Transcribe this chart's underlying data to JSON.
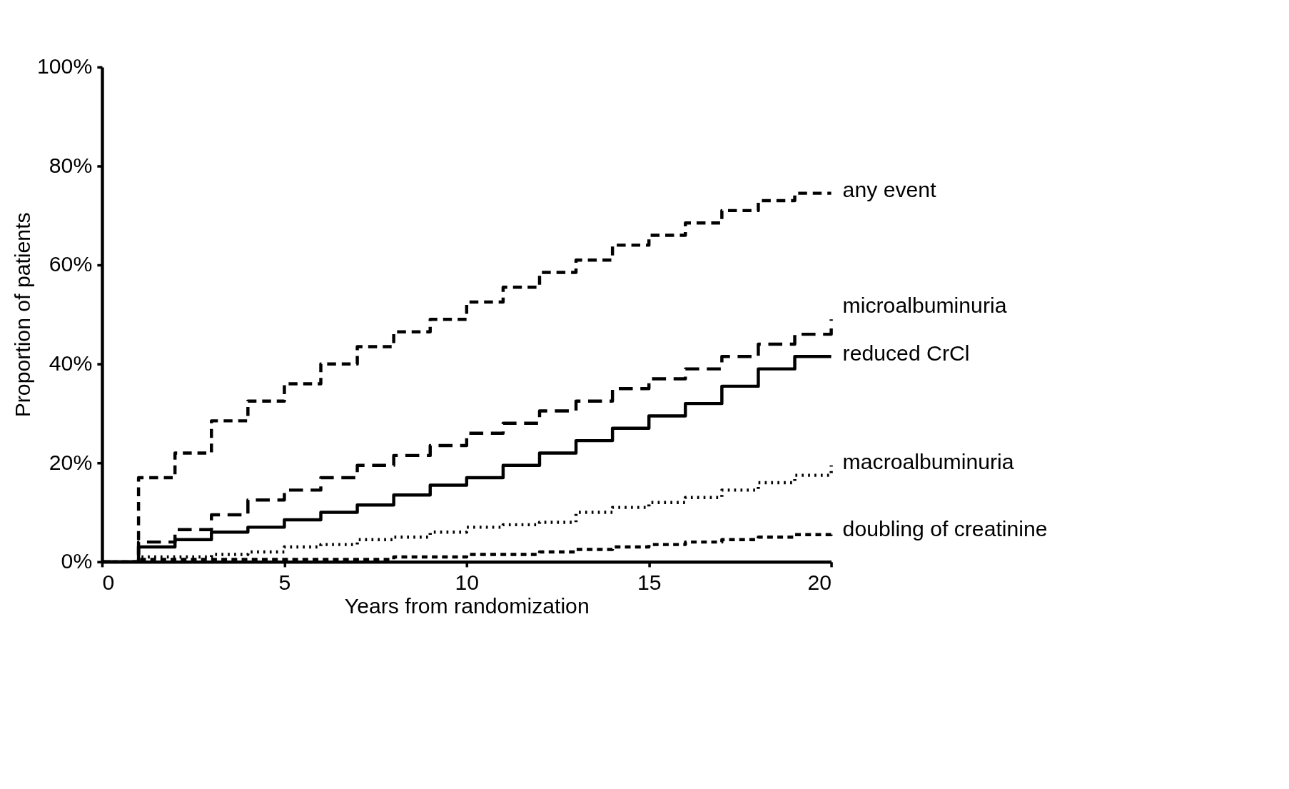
{
  "chart_data": {
    "type": "step",
    "xlabel": "Years from randomization",
    "ylabel": "Proportion of patients",
    "xlim": [
      0,
      20
    ],
    "ylim": [
      0,
      100
    ],
    "xticks": [
      0,
      5,
      10,
      15,
      20
    ],
    "yticks": [
      {
        "value": 0,
        "label": "0%"
      },
      {
        "value": 20,
        "label": "20%"
      },
      {
        "value": 40,
        "label": "40%"
      },
      {
        "value": 60,
        "label": "60%"
      },
      {
        "value": 80,
        "label": "80%"
      },
      {
        "value": 100,
        "label": "100%"
      }
    ],
    "grid": false,
    "legend": false,
    "marker": "none",
    "x": [
      0,
      1,
      2,
      3,
      4,
      5,
      6,
      7,
      8,
      9,
      10,
      11,
      12,
      13,
      14,
      15,
      16,
      17,
      18,
      19,
      20
    ],
    "series": [
      {
        "name": "any event",
        "color": "#000000",
        "line_style": "dashed",
        "values": [
          0,
          17,
          22,
          28.5,
          32.5,
          36,
          40,
          43.5,
          46.5,
          49,
          52.5,
          55.5,
          58.5,
          61,
          64,
          66,
          68.5,
          71,
          73,
          74.5,
          74.5
        ]
      },
      {
        "name": "microalbuminuria",
        "color": "#000000",
        "line_style": "dashed",
        "values": [
          0,
          4,
          6.5,
          9.5,
          12.5,
          14.5,
          17,
          19.5,
          21.5,
          23.5,
          26,
          28,
          30.5,
          32.5,
          35,
          37,
          39,
          41.5,
          44,
          46,
          49
        ]
      },
      {
        "name": "reduced CrCl",
        "color": "#000000",
        "line_style": "solid",
        "values": [
          0,
          3,
          4.5,
          6,
          7,
          8.5,
          10,
          11.5,
          13.5,
          15.5,
          17,
          19.5,
          22,
          24.5,
          27,
          29.5,
          32,
          35.5,
          39,
          41.5,
          41.5
        ]
      },
      {
        "name": "macroalbuminuria",
        "color": "#000000",
        "line_style": "dotted",
        "values": [
          0,
          1,
          1,
          1.5,
          2,
          3,
          3.5,
          4.5,
          5,
          6,
          7,
          7.5,
          8,
          10,
          11,
          12,
          13,
          14.5,
          16,
          17.5,
          19.5
        ]
      },
      {
        "name": "doubling of creatinine",
        "color": "#000000",
        "line_style": "dashed",
        "values": [
          0,
          0.5,
          0.5,
          0.5,
          0.5,
          0.5,
          0.5,
          0.5,
          1,
          1,
          1.5,
          1.5,
          2,
          2.5,
          3,
          3.5,
          4,
          4.5,
          5,
          5.5,
          6
        ]
      }
    ]
  }
}
